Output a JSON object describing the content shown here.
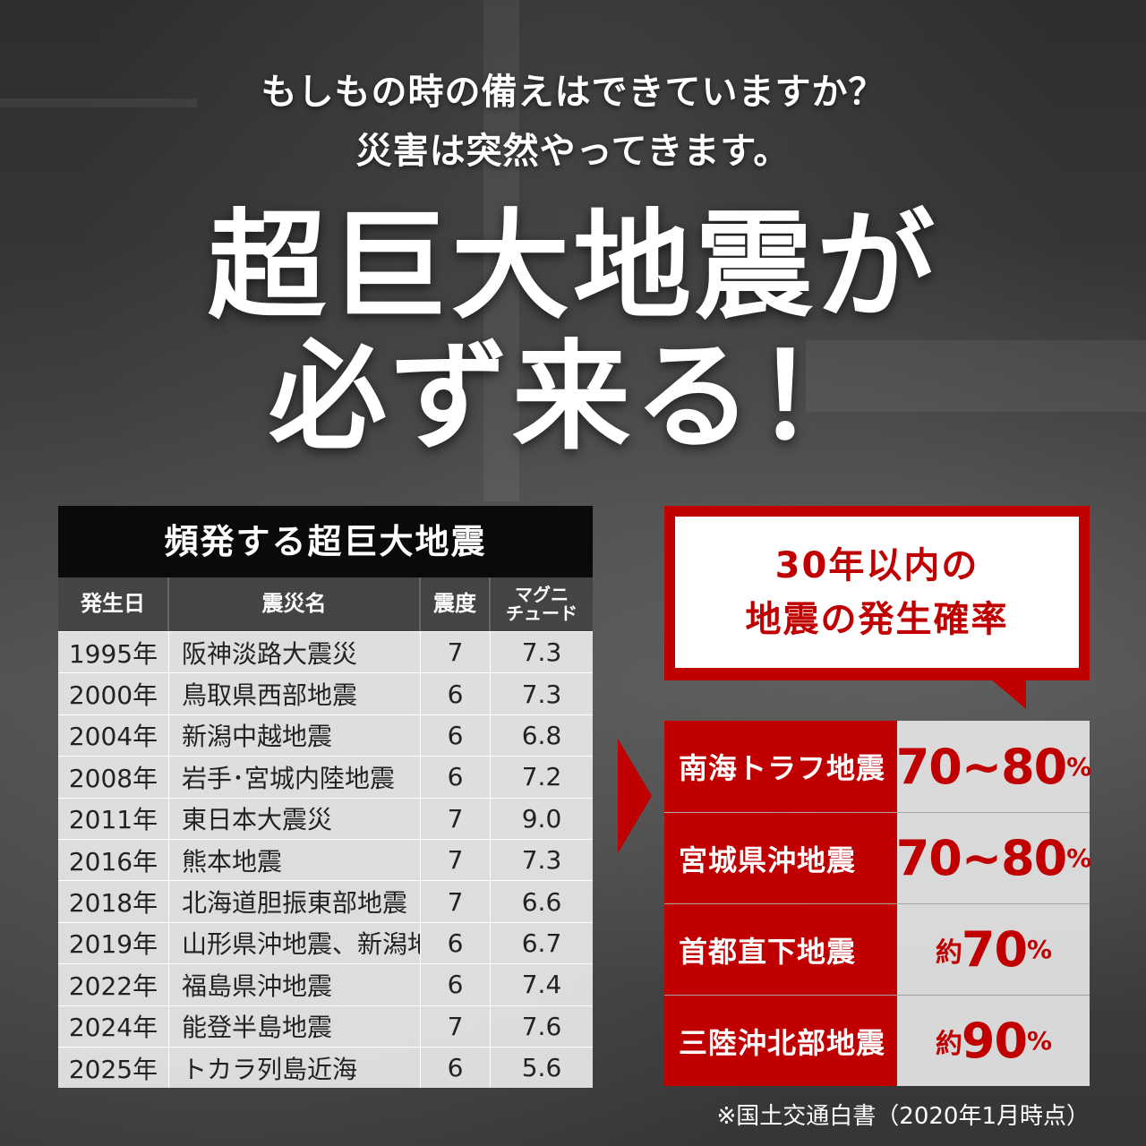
{
  "headline": {
    "line1": "もしもの時の備えはできていますか？",
    "line2": "災害は突然やってきます。",
    "big1": "超巨大地震が",
    "big2": "必ず来る！"
  },
  "table": {
    "title": "頻発する超巨大地震",
    "headers": [
      "発生日",
      "震災名",
      "震度",
      "マグニ\nチュード"
    ],
    "rows": [
      {
        "date": "1995年",
        "name": "阪神淡路大震災",
        "intensity": "7",
        "magnitude": "7.3"
      },
      {
        "date": "2000年",
        "name": "鳥取県西部地震",
        "intensity": "6",
        "magnitude": "7.3"
      },
      {
        "date": "2004年",
        "name": "新潟中越地震",
        "intensity": "6",
        "magnitude": "6.8"
      },
      {
        "date": "2008年",
        "name": "岩手･宮城内陸地震",
        "intensity": "6",
        "magnitude": "7.2"
      },
      {
        "date": "2011年",
        "name": "東日本大震災",
        "intensity": "7",
        "magnitude": "9.0"
      },
      {
        "date": "2016年",
        "name": "熊本地震",
        "intensity": "7",
        "magnitude": "7.3"
      },
      {
        "date": "2018年",
        "name": "北海道胆振東部地震",
        "intensity": "7",
        "magnitude": "6.6"
      },
      {
        "date": "2019年",
        "name": "山形県沖地震、新潟地震",
        "intensity": "6",
        "magnitude": "6.7"
      },
      {
        "date": "2022年",
        "name": "福島県沖地震",
        "intensity": "6",
        "magnitude": "7.4"
      },
      {
        "date": "2024年",
        "name": "能登半島地震",
        "intensity": "7",
        "magnitude": "7.6"
      },
      {
        "date": "2025年",
        "name": "トカラ列島近海",
        "intensity": "6",
        "magnitude": "5.6"
      }
    ]
  },
  "probability": {
    "title1": "30年以内の",
    "title2": "地震の発生確率",
    "rows": [
      {
        "name": "南海トラフ地震",
        "prefix": "",
        "value": "70~80",
        "unit": "%"
      },
      {
        "name": "宮城県沖地震",
        "prefix": "",
        "value": "70~80",
        "unit": "%"
      },
      {
        "name": "首都直下地震",
        "prefix": "約",
        "value": "70",
        "unit": "%"
      },
      {
        "name": "三陸沖北部地震",
        "prefix": "約",
        "value": "90",
        "unit": "%"
      }
    ],
    "footnote": "※国土交通白書（2020年1月時点）"
  },
  "colors": {
    "accent": "#c00000",
    "table_header": "#444444",
    "title_bar": "#0a0a0a"
  }
}
